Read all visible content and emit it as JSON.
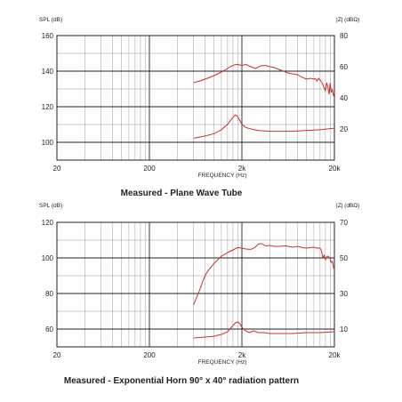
{
  "chart_data": [
    {
      "type": "line",
      "title": "Measured - Plane Wave Tube",
      "xlabel": "FREQUENCY (Hz)",
      "ylabel": "SPL (dB)",
      "y2label": "|Z| (dBΩ)",
      "xscale": "log",
      "xlim": [
        20,
        20000
      ],
      "ylim": [
        90,
        160
      ],
      "y2lim": [
        0,
        80
      ],
      "x_ticks": [
        "20",
        "200",
        "2k",
        "20k"
      ],
      "y_ticks": [
        100,
        120,
        140,
        160
      ],
      "y2_ticks": [
        20,
        40,
        60,
        80
      ],
      "grid": true,
      "series": [
        {
          "axis": "left",
          "x": [
            600,
            700,
            800,
            900,
            1000,
            1100,
            1200,
            1300,
            1400,
            1500,
            1600,
            1700,
            1800,
            2000,
            2200,
            2500,
            2800,
            3200,
            3600,
            4000,
            4500,
            5000,
            5600,
            6300,
            7000,
            8000,
            9000,
            10000,
            11000,
            12000,
            12500,
            13000,
            13500,
            14000,
            14500,
            15000,
            15500,
            16000,
            16500,
            17000,
            17500,
            18000,
            18500,
            19000,
            19500,
            20000
          ],
          "values": [
            133.5,
            134.5,
            135.5,
            136.5,
            137.5,
            138.5,
            139.5,
            140.5,
            141.5,
            142.5,
            143.2,
            143.6,
            143.8,
            143.2,
            143.8,
            142.5,
            141.5,
            143,
            143.2,
            142.5,
            142,
            141,
            140,
            139,
            138.5,
            138,
            136.5,
            135.5,
            136,
            135.5,
            135.8,
            134.5,
            136,
            135,
            134,
            132.5,
            130.5,
            129,
            133.5,
            131,
            127,
            133.5,
            128,
            129.5,
            126.5,
            128
          ]
        },
        {
          "axis": "right",
          "x": [
            600,
            800,
            1000,
            1200,
            1400,
            1600,
            1700,
            1800,
            1900,
            2000,
            2200,
            2500,
            3000,
            4000,
            5000,
            7000,
            10000,
            14000,
            20000
          ],
          "values": [
            14,
            15.5,
            17,
            19.5,
            23,
            27.5,
            29,
            28,
            25.5,
            23,
            21,
            20,
            19,
            18.5,
            18.5,
            18.5,
            19,
            19.5,
            20.5
          ]
        }
      ]
    },
    {
      "type": "line",
      "title": "Measured - Exponential Horn 90° x 40° radiation pattern",
      "xlabel": "FREQUENCY (Hz)",
      "ylabel": "SPL (dB)",
      "y2label": "|Z| (dBΩ)",
      "xscale": "log",
      "xlim": [
        20,
        20000
      ],
      "ylim": [
        50,
        120
      ],
      "y2lim": [
        0,
        70
      ],
      "x_ticks": [
        "20",
        "200",
        "2k",
        "20k"
      ],
      "y_ticks": [
        60,
        80,
        100,
        120
      ],
      "y2_ticks": [
        10,
        30,
        50,
        70
      ],
      "grid": true,
      "series": [
        {
          "axis": "left",
          "x": [
            600,
            650,
            700,
            750,
            800,
            850,
            900,
            950,
            1000,
            1100,
            1200,
            1400,
            1600,
            1800,
            2000,
            2200,
            2500,
            2800,
            3000,
            3300,
            3600,
            4000,
            4500,
            5000,
            6000,
            7000,
            8000,
            9000,
            10000,
            11000,
            12000,
            13000,
            14000,
            14500,
            15000,
            15500,
            16000,
            16500,
            17000,
            17500,
            18000,
            18500,
            19000,
            19500,
            20000
          ],
          "values": [
            73.5,
            78,
            82,
            86.5,
            90,
            92.5,
            94,
            95.5,
            97,
            99,
            101,
            103,
            104.5,
            105.8,
            105.5,
            105,
            104.8,
            106,
            107.8,
            108,
            106.8,
            107,
            106.5,
            106.5,
            106.8,
            106,
            106.5,
            105.8,
            105.5,
            105.8,
            106,
            105.5,
            105.5,
            104,
            100,
            101.5,
            99,
            100.5,
            101,
            100.5,
            99.5,
            97.5,
            98,
            95,
            93
          ]
        },
        {
          "axis": "right",
          "x": [
            600,
            800,
            1000,
            1200,
            1400,
            1600,
            1700,
            1800,
            1900,
            2000,
            2200,
            2400,
            2700,
            3000,
            3500,
            4000,
            5000,
            7000,
            10000,
            14000,
            20000
          ],
          "values": [
            5,
            5.5,
            6,
            7,
            8.5,
            12,
            13.5,
            14,
            13,
            11,
            9,
            8,
            9,
            8,
            8,
            7.5,
            7.5,
            7.5,
            8,
            8,
            8.5
          ]
        }
      ]
    }
  ]
}
